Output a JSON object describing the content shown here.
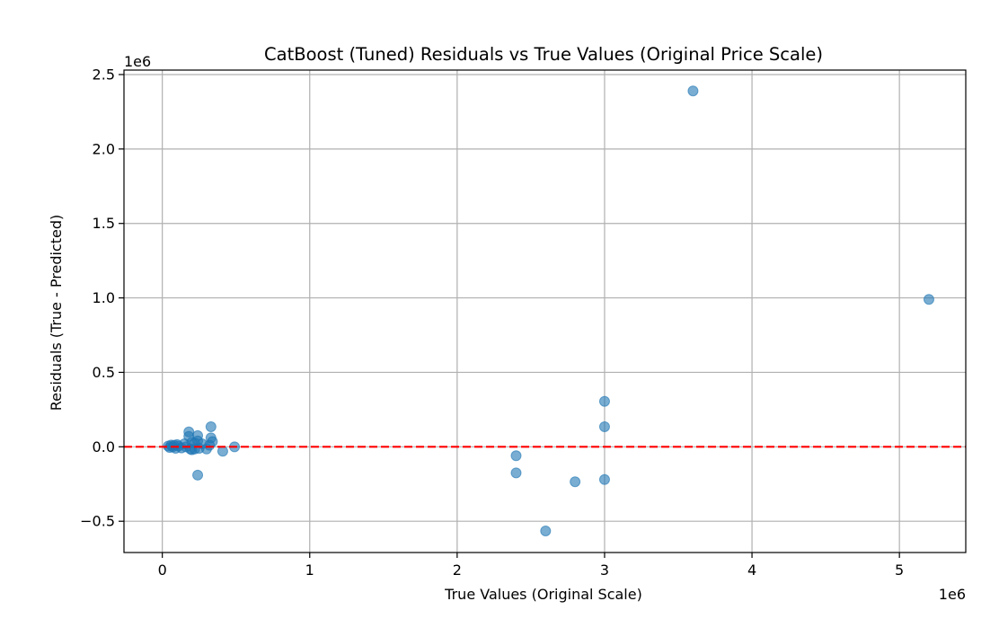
{
  "chart_data": {
    "type": "scatter",
    "title": "CatBoost (Tuned) Residuals vs True Values (Original Price Scale)",
    "xlabel": "True Values (Original Scale)",
    "ylabel": "Residuals (True - Predicted)",
    "x_offset_text": "1e6",
    "y_offset_text": "1e6",
    "xlim": [
      -0.26,
      5.45
    ],
    "ylim": [
      -0.71,
      2.53
    ],
    "x_ticks": [
      {
        "value": 0,
        "label": "0"
      },
      {
        "value": 1,
        "label": "1"
      },
      {
        "value": 2,
        "label": "2"
      },
      {
        "value": 3,
        "label": "3"
      },
      {
        "value": 4,
        "label": "4"
      },
      {
        "value": 5,
        "label": "5"
      }
    ],
    "y_ticks": [
      {
        "value": -0.5,
        "label": "−0.5"
      },
      {
        "value": 0.0,
        "label": "0.0"
      },
      {
        "value": 0.5,
        "label": "0.5"
      },
      {
        "value": 1.0,
        "label": "1.0"
      },
      {
        "value": 1.5,
        "label": "1.5"
      },
      {
        "value": 2.0,
        "label": "2.0"
      },
      {
        "value": 2.5,
        "label": "2.5"
      }
    ],
    "grid": true,
    "reference_line": {
      "y": 0,
      "color": "#ff0000",
      "style": "dashed"
    },
    "point_color": "#1f77b4",
    "point_alpha": 0.6,
    "series": [
      {
        "points": [
          {
            "x": 3.6,
            "y": 2.39
          },
          {
            "x": 5.2,
            "y": 0.99
          },
          {
            "x": 3.0,
            "y": 0.305
          },
          {
            "x": 3.0,
            "y": 0.135
          },
          {
            "x": 3.0,
            "y": -0.22
          },
          {
            "x": 2.4,
            "y": -0.06
          },
          {
            "x": 2.4,
            "y": -0.175
          },
          {
            "x": 2.8,
            "y": -0.235
          },
          {
            "x": 2.6,
            "y": -0.565
          },
          {
            "x": 0.33,
            "y": 0.135
          },
          {
            "x": 0.18,
            "y": 0.1
          },
          {
            "x": 0.18,
            "y": 0.07
          },
          {
            "x": 0.24,
            "y": 0.075
          },
          {
            "x": 0.33,
            "y": 0.06
          },
          {
            "x": 0.34,
            "y": 0.035
          },
          {
            "x": 0.24,
            "y": 0.04
          },
          {
            "x": 0.27,
            "y": 0.02
          },
          {
            "x": 0.22,
            "y": 0.025
          },
          {
            "x": 0.2,
            "y": 0.03
          },
          {
            "x": 0.15,
            "y": 0.02
          },
          {
            "x": 0.1,
            "y": 0.015
          },
          {
            "x": 0.08,
            "y": 0.01
          },
          {
            "x": 0.06,
            "y": 0.012
          },
          {
            "x": 0.04,
            "y": 0.005
          },
          {
            "x": 0.05,
            "y": -0.005
          },
          {
            "x": 0.07,
            "y": 0.0
          },
          {
            "x": 0.09,
            "y": -0.01
          },
          {
            "x": 0.11,
            "y": 0.005
          },
          {
            "x": 0.13,
            "y": -0.008
          },
          {
            "x": 0.16,
            "y": 0.0
          },
          {
            "x": 0.19,
            "y": -0.015
          },
          {
            "x": 0.2,
            "y": -0.02
          },
          {
            "x": 0.22,
            "y": -0.015
          },
          {
            "x": 0.25,
            "y": -0.01
          },
          {
            "x": 0.3,
            "y": -0.015
          },
          {
            "x": 0.32,
            "y": 0.01
          },
          {
            "x": 0.41,
            "y": -0.03
          },
          {
            "x": 0.49,
            "y": 0.0
          },
          {
            "x": 0.24,
            "y": -0.19
          }
        ]
      }
    ]
  }
}
